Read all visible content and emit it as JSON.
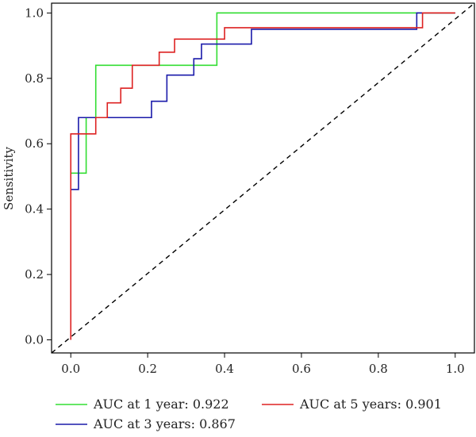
{
  "chart_data": {
    "type": "line",
    "xlabel": "",
    "ylabel": "Sensitivity",
    "xlim": [
      -0.05,
      1.05
    ],
    "ylim": [
      -0.04,
      1.03
    ],
    "xticks": [
      "0.0",
      "0.2",
      "0.4",
      "0.6",
      "0.8",
      "1.0"
    ],
    "yticks": [
      "0.0",
      "0.2",
      "0.4",
      "0.6",
      "0.8",
      "1.0"
    ],
    "grid": false,
    "legend_position": "bottom",
    "reference_line": {
      "style": "dashed",
      "color": "#000000",
      "from": [
        0,
        0
      ],
      "to": [
        1,
        1
      ]
    },
    "series": [
      {
        "name": "AUC at 1 year: 0.922",
        "color": "#33dd33",
        "x": [
          0,
          0,
          0.04,
          0.04,
          0.065,
          0.065,
          0.38,
          0.38,
          0.9,
          0.9,
          1.0
        ],
        "y": [
          0.51,
          0.51,
          0.51,
          0.68,
          0.68,
          0.84,
          0.84,
          1.0,
          1.0,
          1.0,
          1.0
        ]
      },
      {
        "name": "AUC at 3 years: 0.867",
        "color": "#1a1aaa",
        "x": [
          0,
          0,
          0.02,
          0.02,
          0.21,
          0.21,
          0.25,
          0.25,
          0.32,
          0.32,
          0.34,
          0.34,
          0.47,
          0.47,
          0.9,
          0.9,
          1.0
        ],
        "y": [
          0.46,
          0.46,
          0.46,
          0.68,
          0.68,
          0.73,
          0.73,
          0.81,
          0.81,
          0.86,
          0.86,
          0.905,
          0.905,
          0.95,
          0.95,
          1.0,
          1.0
        ]
      },
      {
        "name": "AUC at 5 years: 0.901",
        "color": "#dd2222",
        "x": [
          0,
          0,
          0.065,
          0.065,
          0.095,
          0.095,
          0.13,
          0.13,
          0.16,
          0.16,
          0.23,
          0.23,
          0.27,
          0.27,
          0.4,
          0.4,
          0.915,
          0.915,
          1.0
        ],
        "y": [
          0.0,
          0.63,
          0.63,
          0.68,
          0.68,
          0.725,
          0.725,
          0.77,
          0.77,
          0.84,
          0.84,
          0.88,
          0.88,
          0.92,
          0.92,
          0.955,
          0.955,
          1.0,
          1.0
        ]
      }
    ]
  }
}
